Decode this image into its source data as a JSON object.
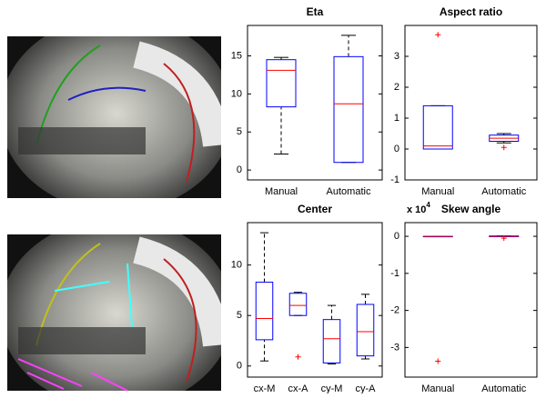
{
  "chart_data": [
    {
      "type": "box",
      "title": "Eta",
      "categories": [
        "Manual",
        "Automatic"
      ],
      "box_color": "#0000ff",
      "median_color": "#ff0000",
      "whisker_color": "#000000",
      "ylim": [
        -1.3,
        19
      ],
      "yticks": [
        0,
        5,
        10,
        15
      ],
      "boxes": [
        {
          "min": 2.1,
          "q1": 8.3,
          "median": 13.1,
          "q3": 14.5,
          "max": 14.8,
          "outliers": []
        },
        {
          "min": 1.0,
          "q1": 1.0,
          "median": 8.7,
          "q3": 14.9,
          "max": 17.7,
          "outliers": []
        }
      ]
    },
    {
      "type": "box",
      "title": "Aspect ratio",
      "categories": [
        "Manual",
        "Automatic"
      ],
      "box_color": "#0000ff",
      "median_color": "#ff0000",
      "whisker_color": "#000000",
      "ylim": [
        -1,
        4
      ],
      "yticks": [
        -1,
        0,
        1,
        2,
        3
      ],
      "boxes": [
        {
          "min": 0,
          "q1": 0,
          "median": 0.1,
          "q3": 1.4,
          "max": 1.4,
          "outliers": [
            3.7
          ]
        },
        {
          "min": 0.2,
          "q1": 0.25,
          "median": 0.35,
          "q3": 0.45,
          "max": 0.5,
          "outliers": [
            0.05
          ]
        }
      ]
    },
    {
      "type": "box",
      "title": "Center",
      "categories": [
        "cx-M",
        "cx-A",
        "cy-M",
        "cy-A"
      ],
      "box_color": "#0000ff",
      "median_color": "#ff0000",
      "whisker_color": "#000000",
      "ylim": [
        -1.1,
        14.2
      ],
      "yticks": [
        0,
        5,
        10
      ],
      "boxes": [
        {
          "min": 0.5,
          "q1": 2.6,
          "median": 4.7,
          "q3": 8.3,
          "max": 13.2,
          "outliers": []
        },
        {
          "min": 5.0,
          "q1": 5.0,
          "median": 6.0,
          "q3": 7.2,
          "max": 7.3,
          "outliers": [
            0.9
          ]
        },
        {
          "min": 0.2,
          "q1": 0.3,
          "median": 2.7,
          "q3": 4.6,
          "max": 6.0,
          "outliers": []
        },
        {
          "min": 0.7,
          "q1": 1.0,
          "median": 3.4,
          "q3": 6.1,
          "max": 7.1,
          "outliers": []
        }
      ]
    },
    {
      "type": "box",
      "title": "Skew angle",
      "categories": [
        "Manual",
        "Automatic"
      ],
      "y_multiplier": {
        "base": "x 10",
        "exponent": "4"
      },
      "box_color": "#0000ff",
      "median_color": "#ff0000",
      "whisker_color": "#000000",
      "ylim": [
        -3.8,
        0.37
      ],
      "yticks": [
        -3,
        -2,
        -1,
        0
      ],
      "boxes": [
        {
          "min": 0,
          "q1": 0,
          "median": 0,
          "q3": 0,
          "max": 0,
          "outliers": [
            -3.37
          ]
        },
        {
          "min": -0.01,
          "q1": -0.01,
          "median": 0,
          "q3": 0.01,
          "max": 0.01,
          "outliers": [
            -0.05
          ]
        }
      ]
    }
  ]
}
